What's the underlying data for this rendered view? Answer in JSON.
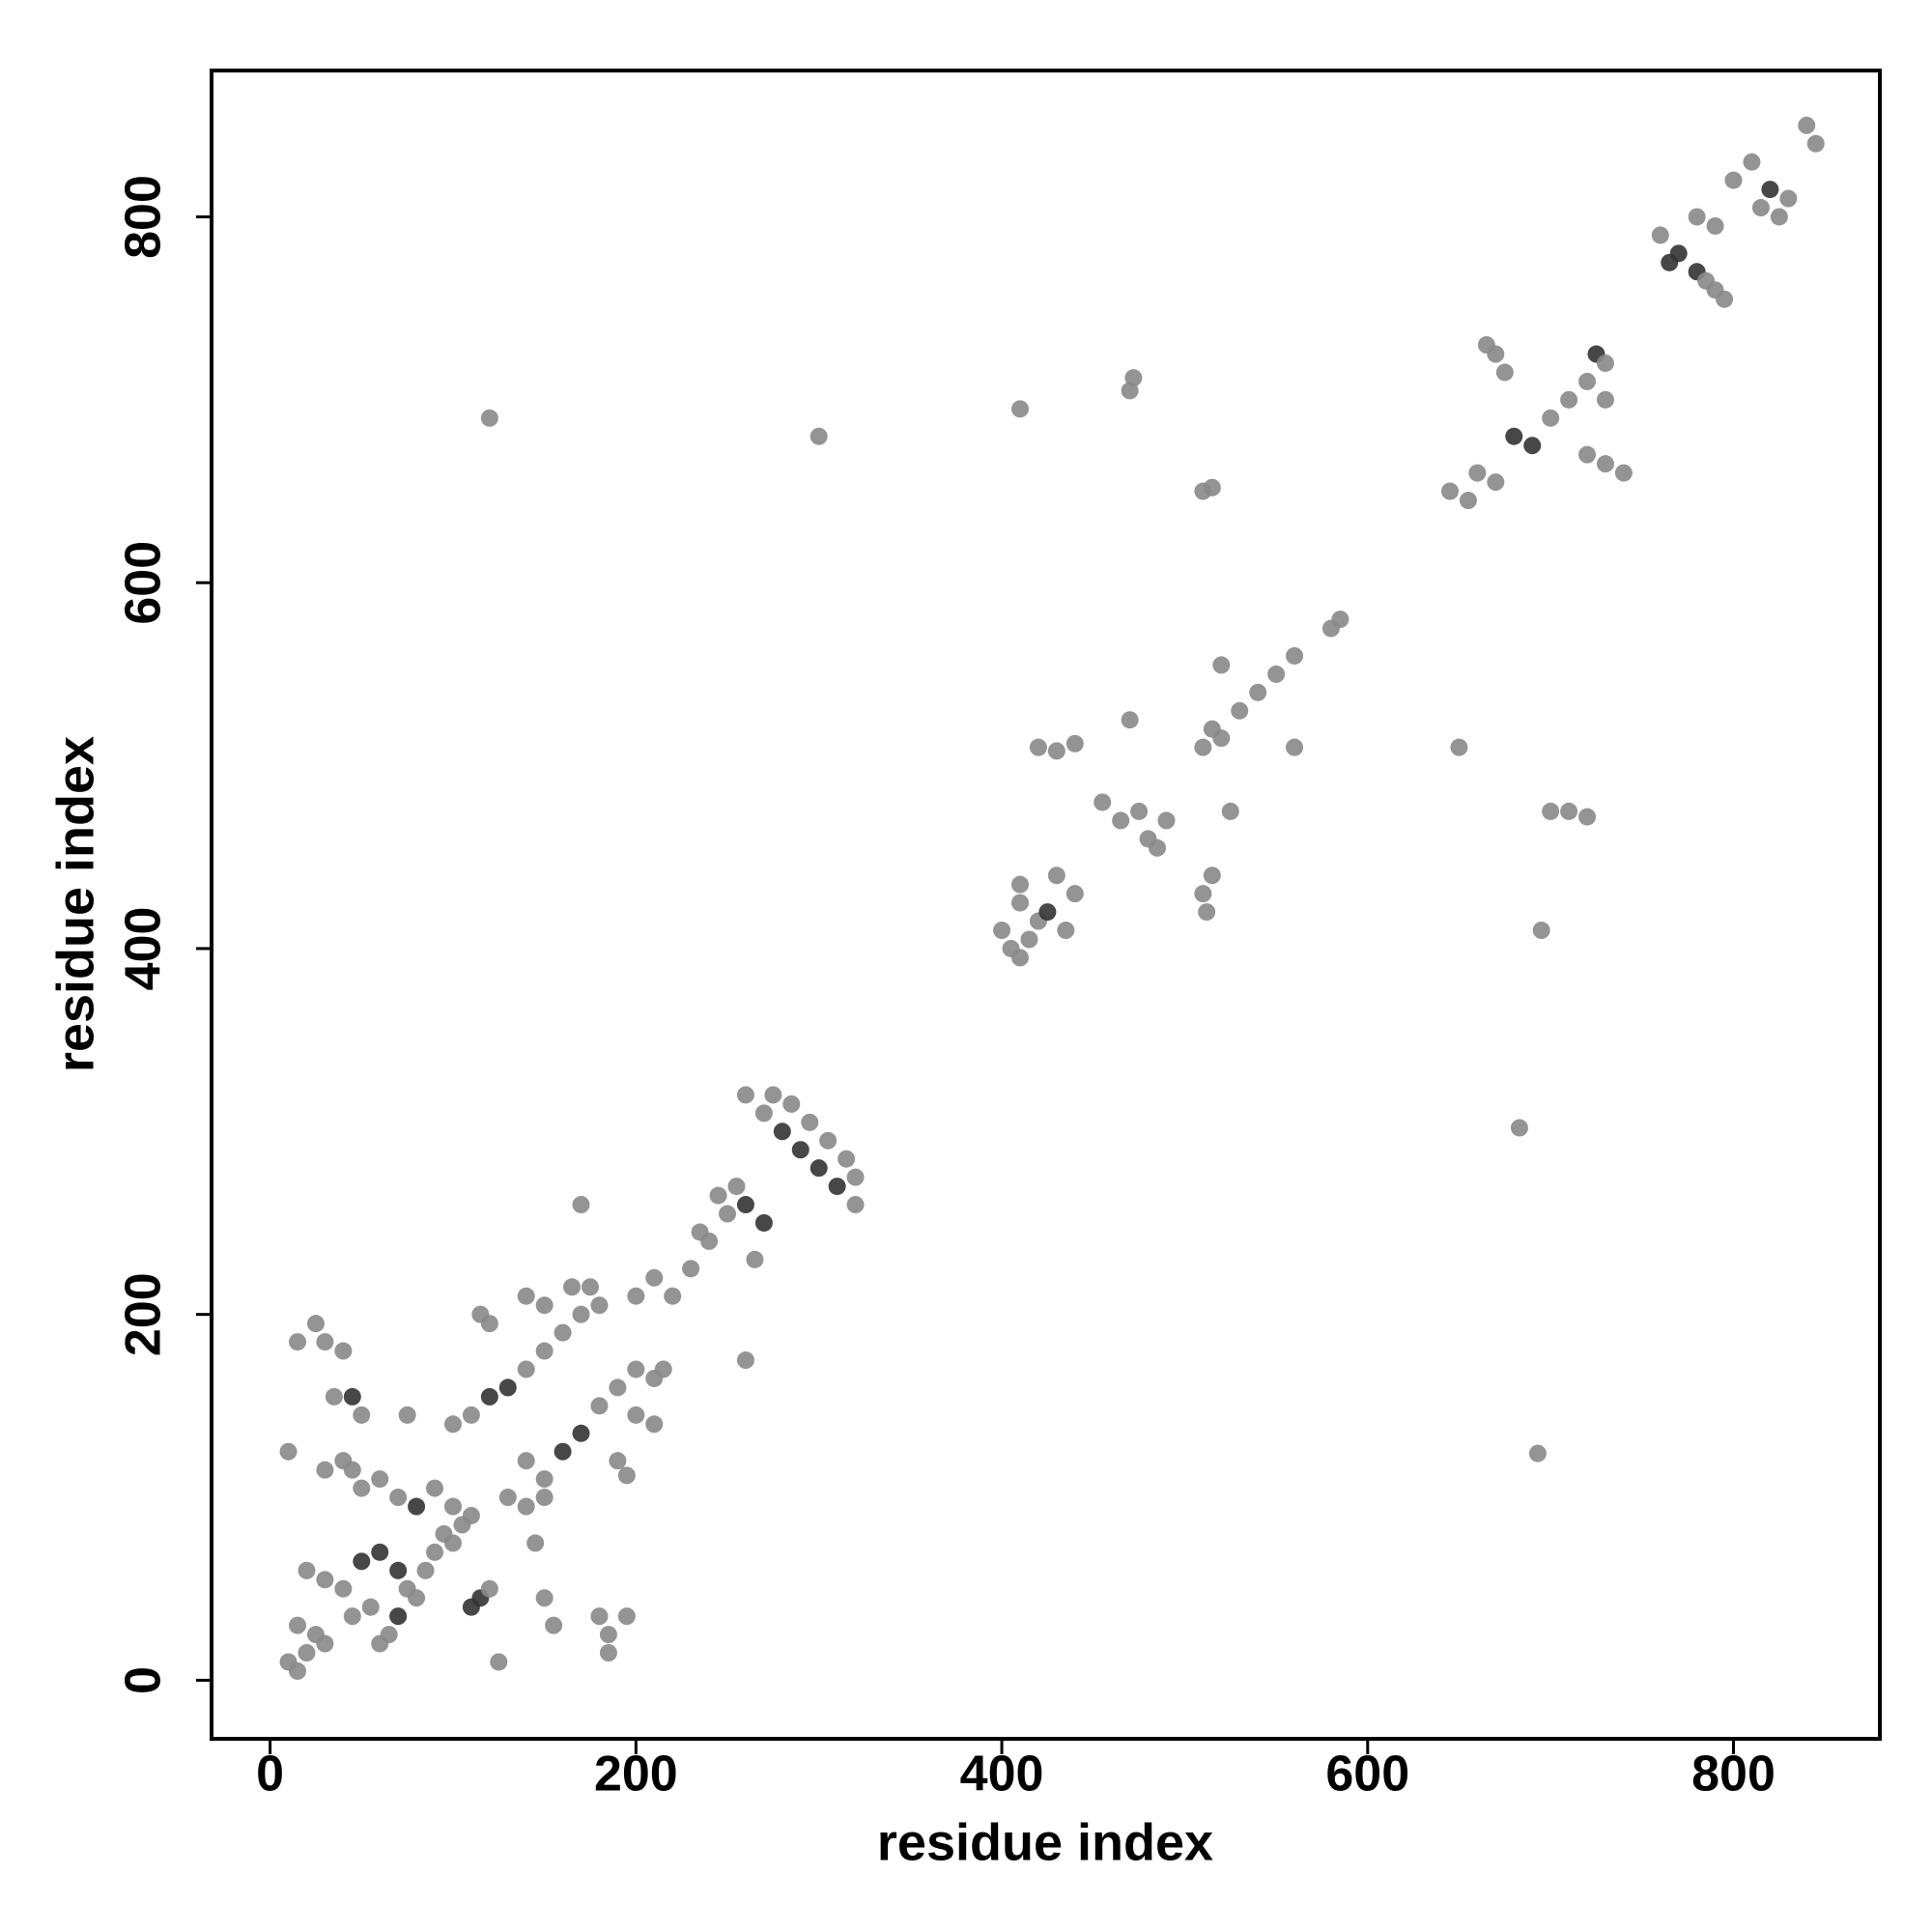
{
  "chart_data": {
    "type": "scatter",
    "xlabel": "residue index",
    "ylabel": "residue index",
    "xlim": [
      -32,
      880
    ],
    "ylim": [
      -32,
      880
    ],
    "xticks": [
      0,
      200,
      400,
      600,
      800
    ],
    "yticks": [
      0,
      200,
      400,
      600,
      800
    ],
    "x": [
      10,
      15,
      20,
      15,
      25,
      30,
      20,
      30,
      40,
      50,
      60,
      70,
      75,
      80,
      55,
      45,
      65,
      60,
      70,
      85,
      90,
      95,
      100,
      105,
      110,
      80,
      70,
      60,
      50,
      45,
      40,
      30,
      90,
      100,
      115,
      110,
      120,
      150,
      155,
      145,
      35,
      45,
      50,
      40,
      30,
      15,
      25,
      10,
      180,
      185,
      195,
      185,
      125,
      75,
      100,
      110,
      120,
      130,
      140,
      150,
      160,
      170,
      180,
      140,
      150,
      165,
      175,
      120,
      115,
      140,
      150,
      160,
      170,
      180,
      190,
      200,
      210,
      215,
      200,
      210,
      190,
      195,
      130,
      140,
      150,
      170,
      200,
      210,
      220,
      230,
      240,
      250,
      260,
      270,
      265,
      255,
      245,
      235,
      260,
      270,
      280,
      290,
      300,
      310,
      320,
      275,
      285,
      295,
      305,
      315,
      320,
      260,
      400,
      405,
      410,
      415,
      420,
      410,
      425,
      435,
      440,
      430,
      410,
      420,
      430,
      440,
      470,
      455,
      465,
      475,
      480,
      485,
      490,
      510,
      512,
      515,
      510,
      515,
      520,
      525,
      530,
      540,
      550,
      560,
      580,
      585,
      520,
      560,
      510,
      515,
      410,
      470,
      472,
      120,
      300,
      650,
      700,
      710,
      720,
      695,
      683,
      693,
      645,
      655,
      660,
      670,
      665,
      670,
      675,
      680,
      690,
      700,
      710,
      720,
      730,
      720,
      730,
      740,
      725,
      730,
      760,
      770,
      780,
      790,
      765,
      785,
      795,
      800,
      810,
      820,
      830,
      825,
      815,
      840,
      845,
      790,
      780
    ],
    "values": [
      10,
      5,
      15,
      30,
      25,
      20,
      60,
      55,
      50,
      65,
      70,
      60,
      50,
      45,
      40,
      35,
      25,
      20,
      35,
      60,
      70,
      80,
      75,
      85,
      90,
      95,
      100,
      110,
      105,
      115,
      120,
      115,
      105,
      95,
      45,
      40,
      50,
      45,
      30,
      75,
      155,
      155,
      145,
      180,
      185,
      185,
      195,
      125,
      35,
      25,
      35,
      15,
      10,
      145,
      140,
      145,
      155,
      160,
      170,
      180,
      190,
      200,
      205,
      210,
      205,
      215,
      215,
      195,
      200,
      120,
      110,
      125,
      135,
      150,
      160,
      170,
      165,
      170,
      145,
      140,
      120,
      112,
      100,
      95,
      100,
      260,
      210,
      220,
      210,
      225,
      240,
      255,
      260,
      250,
      230,
      270,
      265,
      245,
      320,
      310,
      300,
      290,
      280,
      270,
      260,
      320,
      315,
      305,
      295,
      285,
      275,
      175,
      410,
      400,
      395,
      405,
      415,
      425,
      420,
      410,
      430,
      440,
      435,
      510,
      508,
      512,
      525,
      480,
      470,
      475,
      460,
      455,
      470,
      430,
      420,
      440,
      510,
      520,
      515,
      475,
      530,
      540,
      550,
      560,
      575,
      580,
      555,
      510,
      650,
      652,
      695,
      705,
      712,
      690,
      680,
      510,
      475,
      475,
      472,
      410,
      302,
      124,
      650,
      645,
      660,
      655,
      730,
      725,
      715,
      680,
      675,
      690,
      700,
      710,
      700,
      670,
      665,
      660,
      725,
      720,
      790,
      780,
      770,
      760,
      775,
      765,
      755,
      820,
      830,
      815,
      810,
      800,
      805,
      850,
      840,
      795,
      800
    ],
    "colors": [
      "#888",
      "#888",
      "#888",
      "#888",
      "#888",
      "#888",
      "#888",
      "#888",
      "#888",
      "#333",
      "#333",
      "#333",
      "#888",
      "#888",
      "#888",
      "#888",
      "#888",
      "#888",
      "#333",
      "#888",
      "#888",
      "#888",
      "#888",
      "#888",
      "#888",
      "#333",
      "#888",
      "#888",
      "#888",
      "#888",
      "#888",
      "#888",
      "#888",
      "#888",
      "#333",
      "#333",
      "#888",
      "#888",
      "#888",
      "#888",
      "#888",
      "#333",
      "#888",
      "#888",
      "#888",
      "#888",
      "#888",
      "#888",
      "#888",
      "#888",
      "#888",
      "#888",
      "#888",
      "#888",
      "#888",
      "#888",
      "#333",
      "#333",
      "#888",
      "#888",
      "#888",
      "#888",
      "#888",
      "#888",
      "#888",
      "#888",
      "#888",
      "#888",
      "#888",
      "#888",
      "#888",
      "#333",
      "#333",
      "#888",
      "#888",
      "#888",
      "#888",
      "#888",
      "#888",
      "#888",
      "#888",
      "#888",
      "#888",
      "#888",
      "#888",
      "#888",
      "#888",
      "#888",
      "#888",
      "#888",
      "#888",
      "#888",
      "#333",
      "#333",
      "#888",
      "#888",
      "#888",
      "#888",
      "#888",
      "#888",
      "#333",
      "#333",
      "#333",
      "#333",
      "#888",
      "#888",
      "#888",
      "#888",
      "#888",
      "#888",
      "#888",
      "#888",
      "#888",
      "#888",
      "#888",
      "#888",
      "#888",
      "#888",
      "#333",
      "#888",
      "#888",
      "#888",
      "#888",
      "#888",
      "#888",
      "#888",
      "#888",
      "#888",
      "#888",
      "#888",
      "#888",
      "#888",
      "#888",
      "#888",
      "#888",
      "#888",
      "#888",
      "#888",
      "#888",
      "#888",
      "#888",
      "#888",
      "#888",
      "#888",
      "#888",
      "#888",
      "#888",
      "#888",
      "#888",
      "#888",
      "#888",
      "#888",
      "#888",
      "#888",
      "#888",
      "#888",
      "#888",
      "#888",
      "#888",
      "#888",
      "#888",
      "#888",
      "#888",
      "#888",
      "#888",
      "#888",
      "#888",
      "#888",
      "#888",
      "#333",
      "#333",
      "#888",
      "#888",
      "#888",
      "#888",
      "#888",
      "#888",
      "#888",
      "#333",
      "#888",
      "#888",
      "#333",
      "#333",
      "#888",
      "#333",
      "#888",
      "#888",
      "#888",
      "#888",
      "#333",
      "#888",
      "#888",
      "#888",
      "#888",
      "#888",
      "#888",
      "#888"
    ]
  }
}
